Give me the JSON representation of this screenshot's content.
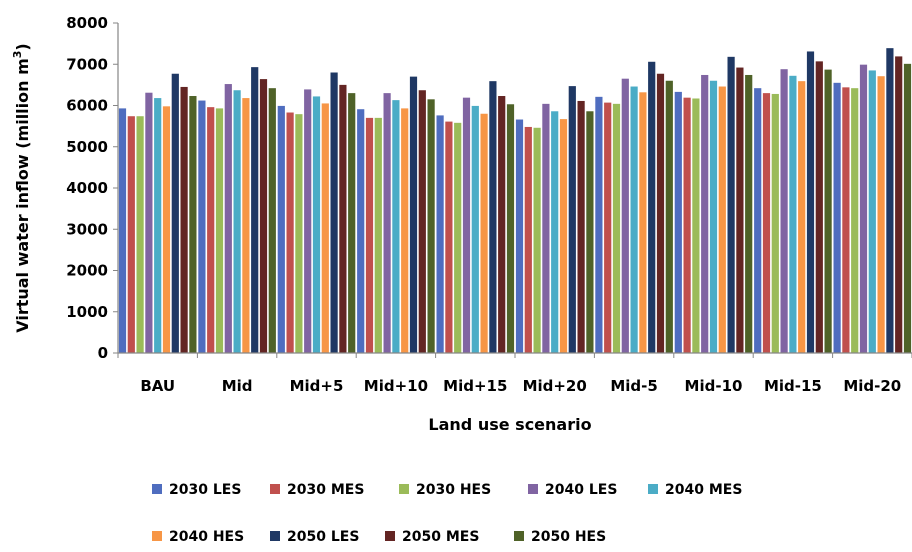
{
  "chart_data": {
    "type": "bar",
    "xlabel": "Land use scenario",
    "ylabel": "Virtual water inflow (million m",
    "ylabel_sup": "3",
    "ylabel_close": ")",
    "ylim": [
      0,
      8000
    ],
    "yticks": [
      0,
      1000,
      2000,
      3000,
      4000,
      5000,
      6000,
      7000,
      8000
    ],
    "grid": false,
    "legend_position": "bottom",
    "categories": [
      "BAU",
      "Mid",
      "Mid+5",
      "Mid+10",
      "Mid+15",
      "Mid+20",
      "Mid-5",
      "Mid-10",
      "Mid-15",
      "Mid-20"
    ],
    "series": [
      {
        "name": "2030 LES",
        "color": "#4F6DBF",
        "values": [
          5930,
          6120,
          5990,
          5910,
          5760,
          5660,
          6210,
          6330,
          6420,
          6550
        ]
      },
      {
        "name": "2030 MES",
        "color": "#C0504D",
        "values": [
          5740,
          5960,
          5830,
          5700,
          5610,
          5480,
          6070,
          6190,
          6300,
          6440
        ]
      },
      {
        "name": "2030 HES",
        "color": "#9BBB59",
        "values": [
          5740,
          5930,
          5790,
          5700,
          5580,
          5460,
          6040,
          6170,
          6280,
          6420
        ]
      },
      {
        "name": "2040 LES",
        "color": "#8064A2",
        "values": [
          6310,
          6520,
          6390,
          6300,
          6190,
          6040,
          6650,
          6740,
          6880,
          6990
        ]
      },
      {
        "name": "2040 MES",
        "color": "#4BACC6",
        "values": [
          6180,
          6370,
          6220,
          6130,
          5990,
          5860,
          6460,
          6600,
          6720,
          6850
        ]
      },
      {
        "name": "2040 HES",
        "color": "#F79646",
        "values": [
          5980,
          6180,
          6050,
          5930,
          5800,
          5670,
          6320,
          6460,
          6590,
          6710
        ]
      },
      {
        "name": "2050 LES",
        "color": "#1F3864",
        "values": [
          6770,
          6930,
          6800,
          6700,
          6590,
          6470,
          7060,
          7180,
          7310,
          7390
        ]
      },
      {
        "name": "2050 MES",
        "color": "#632523",
        "values": [
          6450,
          6640,
          6500,
          6370,
          6230,
          6110,
          6770,
          6920,
          7070,
          7190
        ]
      },
      {
        "name": "2050 HES",
        "color": "#4F6228",
        "values": [
          6230,
          6420,
          6300,
          6150,
          6030,
          5860,
          6600,
          6740,
          6870,
          7010
        ]
      }
    ]
  }
}
